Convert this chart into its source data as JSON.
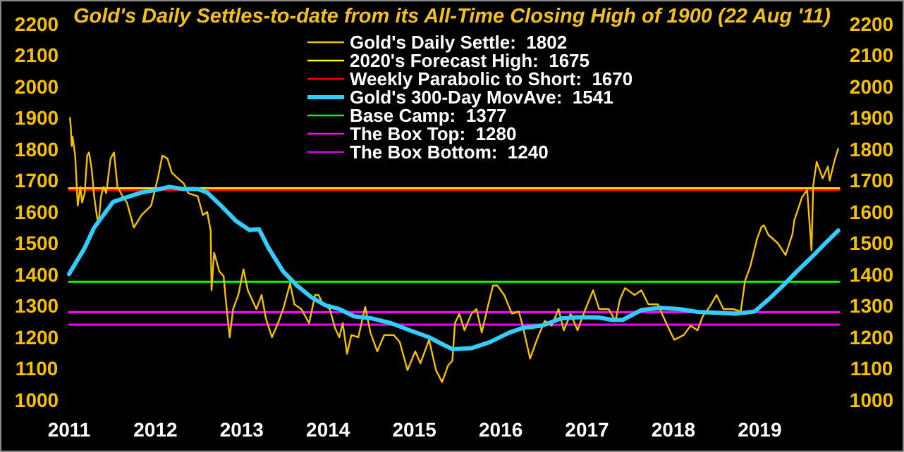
{
  "chart_data": {
    "type": "line",
    "title": "Gold's Daily Settles-to-date from its All-Time Closing High of 1900 (22 Aug '11)",
    "xlim": [
      2011,
      2019.92
    ],
    "xticks": [
      2011,
      2012,
      2013,
      2014,
      2015,
      2016,
      2017,
      2018,
      2019
    ],
    "ylim": [
      1000,
      2200
    ],
    "yticks": [
      1000,
      1100,
      1200,
      1300,
      1400,
      1500,
      1600,
      1700,
      1800,
      1900,
      2000,
      2100,
      2200
    ],
    "y2lim": [
      1000,
      2200
    ],
    "y2ticks": [
      1000,
      1100,
      1200,
      1300,
      1400,
      1500,
      1600,
      1700,
      1800,
      1900,
      2000,
      2100,
      2200
    ],
    "grid": false,
    "legend": "top",
    "marker": "none",
    "line_style": "solid",
    "series": [
      {
        "name": "Gold's Daily Settle:  1802",
        "color": "#f5c000",
        "x": [
          2011.01,
          2011.02,
          2011.03,
          2011.04,
          2011.07,
          2011.1,
          2011.13,
          2011.15,
          2011.18,
          2011.21,
          2011.23,
          2011.26,
          2011.29,
          2011.32,
          2011.34,
          2011.37,
          2011.4,
          2011.43,
          2011.48,
          2011.52,
          2011.56,
          2011.62,
          2011.67,
          2011.75,
          2011.84,
          2011.95,
          2012.03,
          2012.08,
          2012.14,
          2012.19,
          2012.25,
          2012.33,
          2012.38,
          2012.49,
          2012.55,
          2012.6,
          2012.64,
          2012.65,
          2012.68,
          2012.74,
          2012.79,
          2012.82,
          2012.86,
          2012.9,
          2012.96,
          2013.02,
          2013.07,
          2013.12,
          2013.17,
          2013.23,
          2013.28,
          2013.35,
          2013.42,
          2013.48,
          2013.56,
          2013.61,
          2013.69,
          2013.78,
          2013.85,
          2013.89,
          2013.94,
          2014.02,
          2014.08,
          2014.13,
          2014.17,
          2014.22,
          2014.27,
          2014.35,
          2014.43,
          2014.49,
          2014.57,
          2014.65,
          2014.76,
          2014.83,
          2014.92,
          2015.01,
          2015.07,
          2015.17,
          2015.25,
          2015.32,
          2015.39,
          2015.44,
          2015.47,
          2015.52,
          2015.58,
          2015.66,
          2015.72,
          2015.78,
          2015.85,
          2015.91,
          2015.96,
          2016.04,
          2016.13,
          2016.21,
          2016.26,
          2016.34,
          2016.43,
          2016.51,
          2016.59,
          2016.67,
          2016.73,
          2016.81,
          2016.89,
          2016.97,
          2017.07,
          2017.14,
          2017.25,
          2017.33,
          2017.38,
          2017.44,
          2017.55,
          2017.63,
          2017.71,
          2017.82,
          2017.93,
          2018.01,
          2018.12,
          2018.2,
          2018.28,
          2018.34,
          2018.42,
          2018.5,
          2018.58,
          2018.69,
          2018.78,
          2018.83,
          2018.89,
          2018.97,
          2019.02,
          2019.05,
          2019.1,
          2019.21,
          2019.3,
          2019.38,
          2019.4,
          2019.49,
          2019.55,
          2019.6,
          2019.62,
          2019.66,
          2019.73,
          2019.79,
          2019.81,
          2019.87,
          2019.91
        ],
        "values": [
          1900,
          1870,
          1810,
          1840,
          1780,
          1620,
          1680,
          1630,
          1660,
          1780,
          1790,
          1740,
          1650,
          1590,
          1560,
          1650,
          1680,
          1660,
          1770,
          1790,
          1680,
          1650,
          1630,
          1550,
          1590,
          1620,
          1710,
          1780,
          1770,
          1725,
          1710,
          1690,
          1660,
          1650,
          1590,
          1600,
          1540,
          1350,
          1470,
          1410,
          1395,
          1305,
          1200,
          1290,
          1335,
          1417,
          1350,
          1320,
          1290,
          1335,
          1260,
          1200,
          1245,
          1290,
          1372,
          1305,
          1290,
          1245,
          1335,
          1335,
          1305,
          1290,
          1230,
          1200,
          1245,
          1147,
          1207,
          1200,
          1297,
          1215,
          1155,
          1207,
          1207,
          1185,
          1095,
          1155,
          1117,
          1192,
          1095,
          1057,
          1110,
          1125,
          1245,
          1275,
          1222,
          1275,
          1290,
          1215,
          1297,
          1365,
          1365,
          1335,
          1275,
          1282,
          1230,
          1132,
          1200,
          1252,
          1237,
          1290,
          1222,
          1275,
          1222,
          1282,
          1350,
          1290,
          1290,
          1252,
          1320,
          1357,
          1335,
          1350,
          1305,
          1305,
          1237,
          1192,
          1207,
          1237,
          1222,
          1267,
          1297,
          1335,
          1290,
          1290,
          1282,
          1380,
          1425,
          1515,
          1552,
          1557,
          1527,
          1500,
          1462,
          1530,
          1572,
          1647,
          1670,
          1477,
          1685,
          1760,
          1707,
          1745,
          1700,
          1767,
          1802
        ]
      },
      {
        "name": "2020's Forecast High:  1675",
        "color": "#ffff00",
        "x": [
          2011,
          2019.92
        ],
        "values": [
          1675,
          1675
        ]
      },
      {
        "name": "Weekly Parabolic to Short:  1670",
        "color": "#ff0000",
        "x": [
          2011,
          2019.92
        ],
        "values": [
          1670,
          1670
        ]
      },
      {
        "name": "Gold's 300-Day MovAve:  1541",
        "color": "#33ccff",
        "x": [
          2011.0,
          2011.18,
          2011.29,
          2011.51,
          2011.67,
          2011.84,
          2012.0,
          2012.16,
          2012.33,
          2012.49,
          2012.6,
          2012.77,
          2012.93,
          2013.09,
          2013.2,
          2013.31,
          2013.48,
          2013.64,
          2013.81,
          2013.97,
          2014.13,
          2014.3,
          2014.51,
          2014.73,
          2014.95,
          2015.17,
          2015.33,
          2015.44,
          2015.66,
          2015.88,
          2016.1,
          2016.26,
          2016.48,
          2016.7,
          2016.92,
          2017.14,
          2017.3,
          2017.41,
          2017.63,
          2017.85,
          2018.07,
          2018.28,
          2018.5,
          2018.72,
          2018.94,
          2019.1,
          2019.27,
          2019.43,
          2019.6,
          2019.76,
          2019.91
        ],
        "values": [
          1402,
          1485,
          1550,
          1632,
          1647,
          1662,
          1670,
          1680,
          1673,
          1673,
          1662,
          1617,
          1572,
          1542,
          1545,
          1485,
          1410,
          1365,
          1327,
          1302,
          1290,
          1267,
          1260,
          1245,
          1222,
          1200,
          1177,
          1162,
          1165,
          1185,
          1215,
          1230,
          1237,
          1260,
          1264,
          1263,
          1255,
          1255,
          1287,
          1294,
          1290,
          1281,
          1278,
          1275,
          1282,
          1320,
          1365,
          1410,
          1455,
          1500,
          1541
        ]
      },
      {
        "name": "Base Camp:  1377",
        "color": "#00ff00",
        "x": [
          2011,
          2019.92
        ],
        "values": [
          1377,
          1377
        ]
      },
      {
        "name": "The Box Top:  1280",
        "color": "#ff00ff",
        "x": [
          2011,
          2019.92
        ],
        "values": [
          1280,
          1280
        ]
      },
      {
        "name": "The Box Bottom:  1240",
        "color": "#e000e0",
        "x": [
          2011,
          2019.92
        ],
        "values": [
          1240,
          1240
        ]
      }
    ]
  }
}
